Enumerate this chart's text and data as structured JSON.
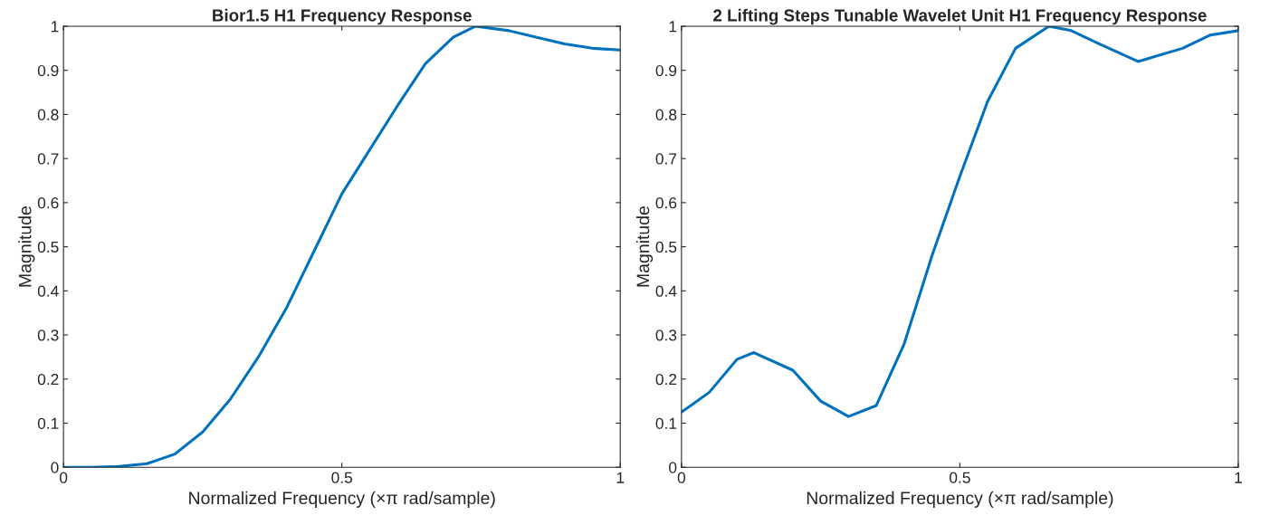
{
  "chart_data": [
    {
      "type": "line",
      "title": "Bior1.5 H1 Frequency Response",
      "xlabel": "Normalized Frequency (×π rad/sample)",
      "ylabel": "Magnitude",
      "xlim": [
        0,
        1
      ],
      "ylim": [
        0,
        1
      ],
      "xticks": [
        0,
        0.5,
        1
      ],
      "yticks": [
        0,
        0.1,
        0.2,
        0.3,
        0.4,
        0.5,
        0.6,
        0.7,
        0.8,
        0.9,
        1
      ],
      "grid": false,
      "legend": false,
      "series": [
        {
          "color": "#0072bd",
          "x": [
            0,
            0.05,
            0.1,
            0.15,
            0.2,
            0.25,
            0.3,
            0.35,
            0.4,
            0.45,
            0.5,
            0.55,
            0.6,
            0.65,
            0.7,
            0.74,
            0.8,
            0.85,
            0.9,
            0.95,
            1
          ],
          "values": [
            0,
            0,
            0.002,
            0.008,
            0.03,
            0.08,
            0.155,
            0.25,
            0.36,
            0.49,
            0.62,
            0.72,
            0.82,
            0.915,
            0.975,
            1.0,
            0.99,
            0.975,
            0.96,
            0.95,
            0.946
          ]
        }
      ]
    },
    {
      "type": "line",
      "title": "2 Lifting Steps Tunable Wavelet Unit H1 Frequency Response",
      "xlabel": "Normalized Frequency (×π rad/sample)",
      "ylabel": "Magnitude",
      "xlim": [
        0,
        1
      ],
      "ylim": [
        0,
        1
      ],
      "xticks": [
        0,
        0.5,
        1
      ],
      "yticks": [
        0,
        0.1,
        0.2,
        0.3,
        0.4,
        0.5,
        0.6,
        0.7,
        0.8,
        0.9,
        1
      ],
      "grid": false,
      "legend": false,
      "series": [
        {
          "color": "#0072bd",
          "x": [
            0,
            0.05,
            0.1,
            0.13,
            0.2,
            0.25,
            0.3,
            0.35,
            0.4,
            0.45,
            0.5,
            0.55,
            0.6,
            0.66,
            0.7,
            0.75,
            0.82,
            0.9,
            0.95,
            1
          ],
          "values": [
            0.125,
            0.17,
            0.245,
            0.26,
            0.22,
            0.15,
            0.115,
            0.14,
            0.28,
            0.48,
            0.66,
            0.83,
            0.95,
            1.0,
            0.99,
            0.96,
            0.92,
            0.95,
            0.98,
            0.99
          ]
        }
      ]
    }
  ]
}
